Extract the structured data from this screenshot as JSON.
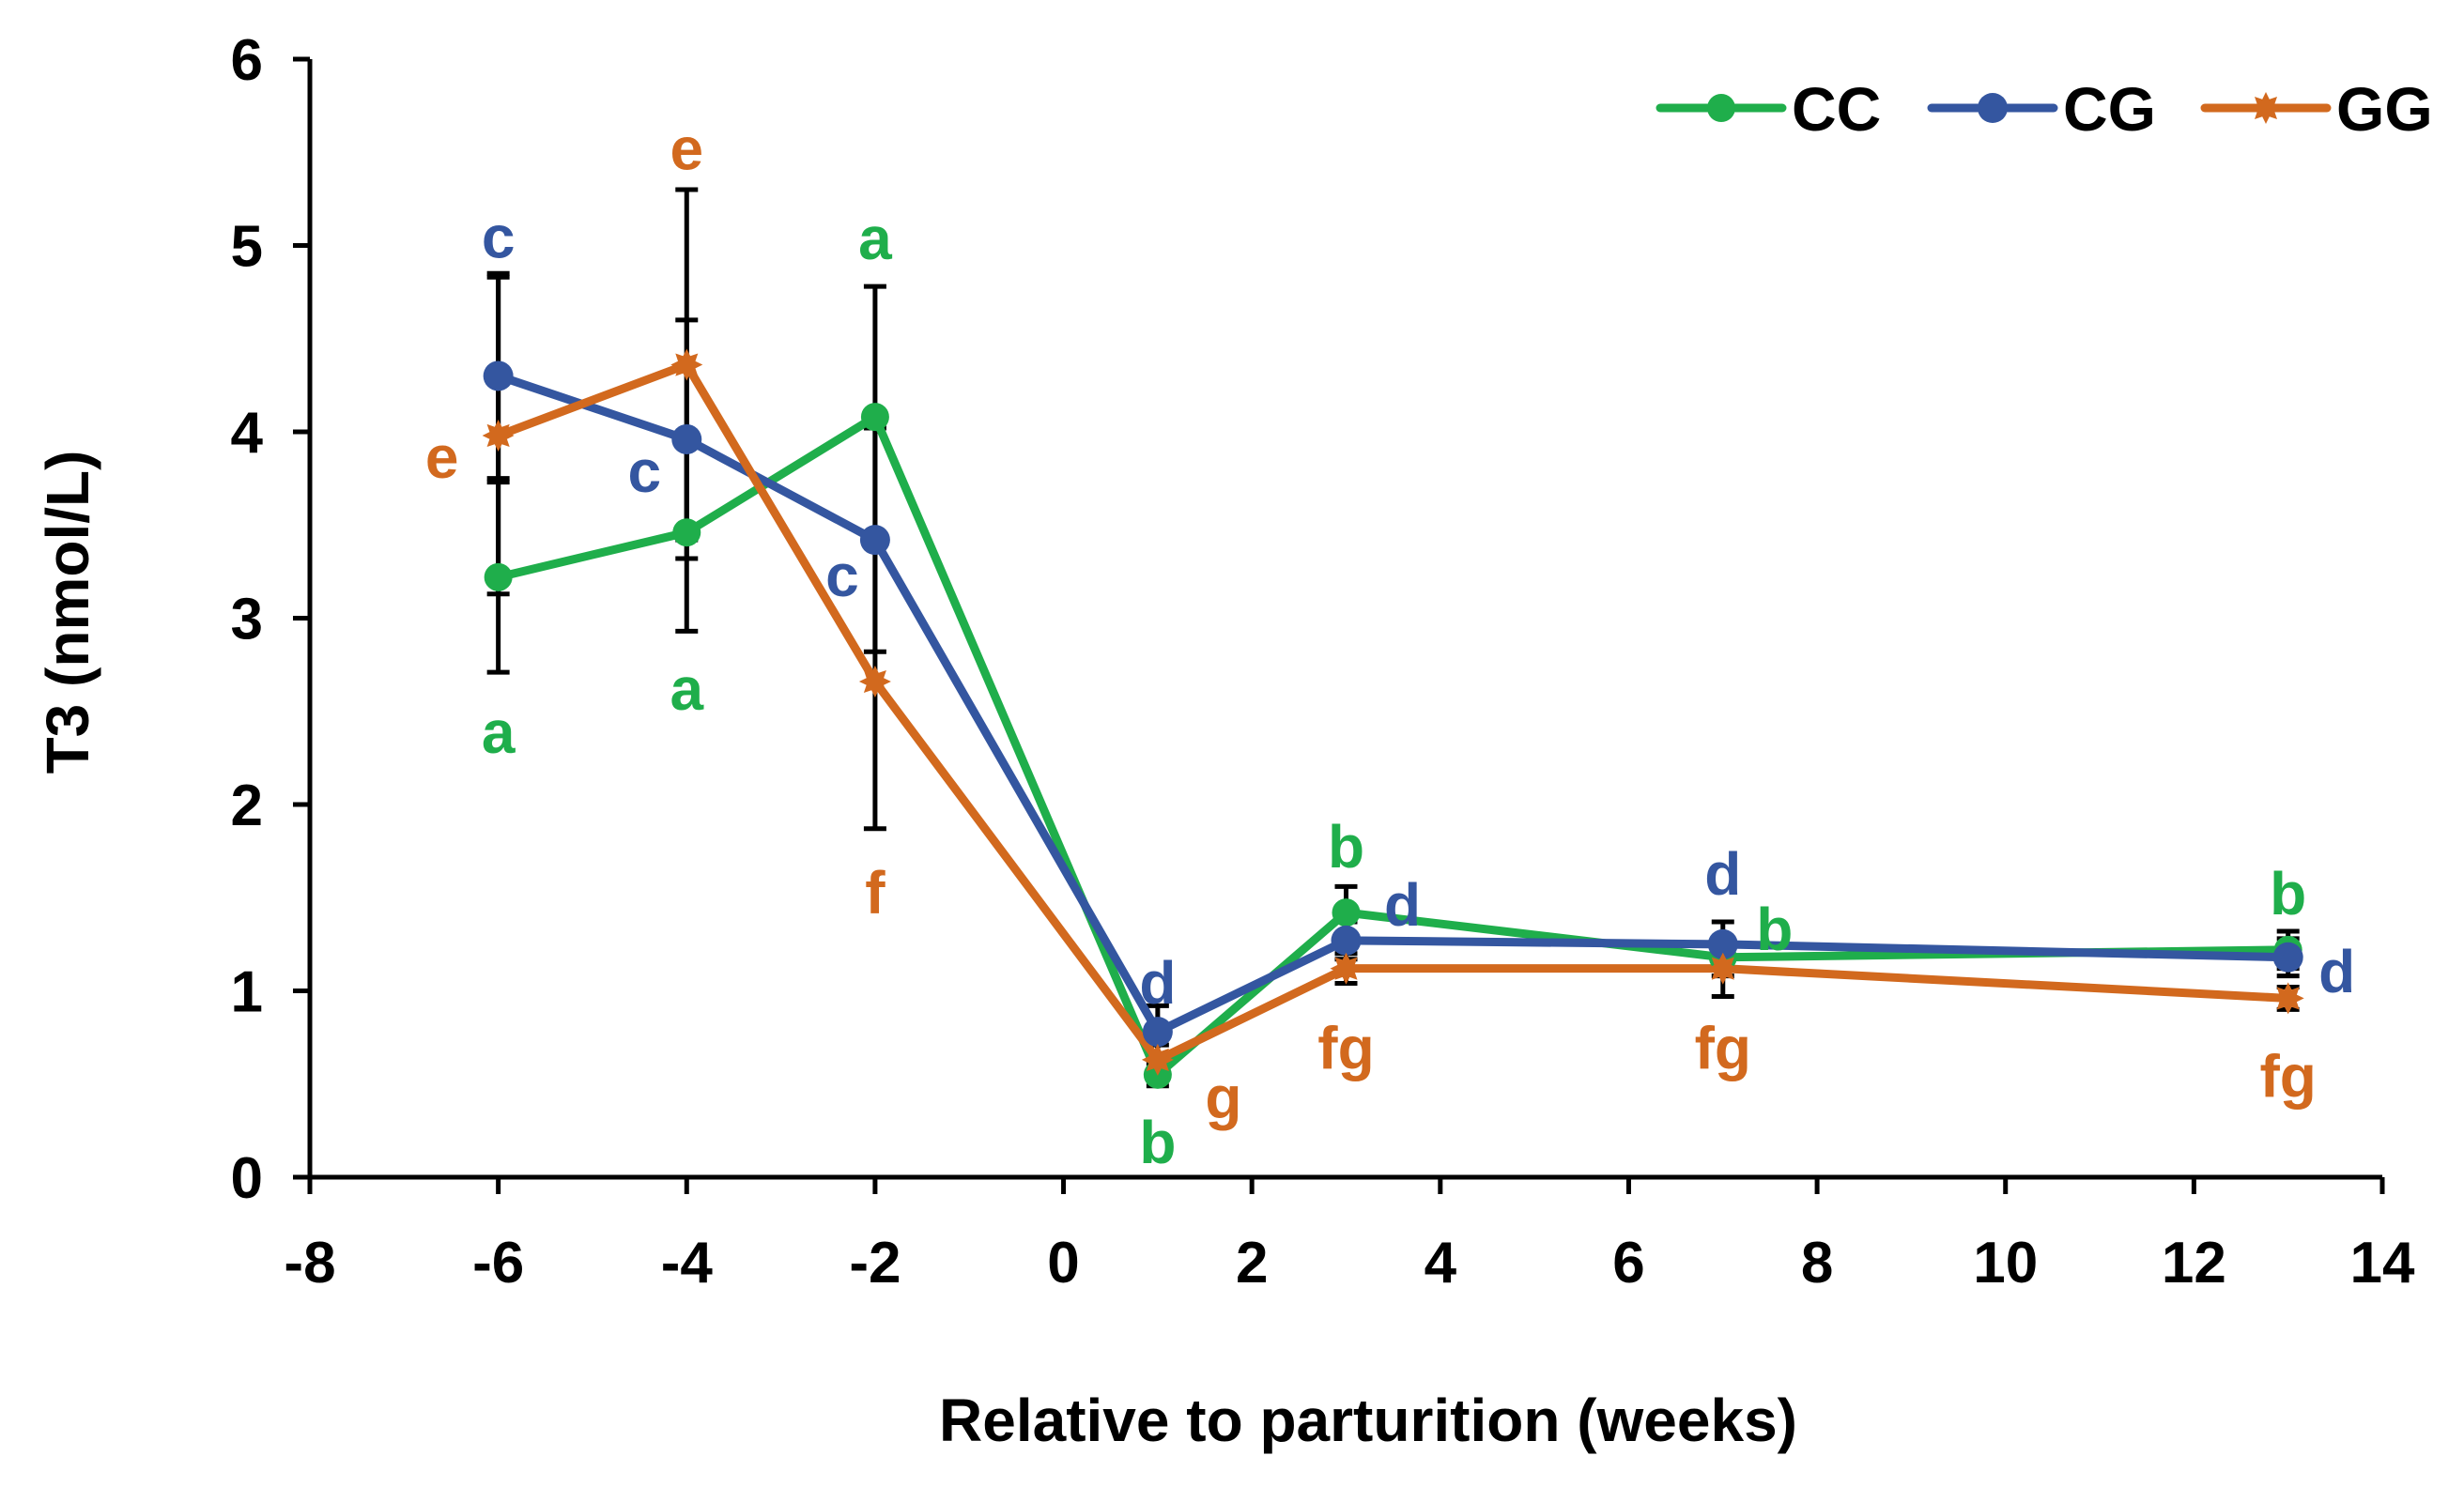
{
  "chart_data": {
    "type": "line",
    "xlabel": "Relative to parturition (weeks)",
    "ylabel": "T3 (nmol/L)",
    "xlim": [
      -8,
      14
    ],
    "ylim": [
      0,
      6
    ],
    "xticks": [
      -8,
      -6,
      -4,
      -2,
      0,
      2,
      4,
      6,
      8,
      10,
      12,
      14
    ],
    "yticks": [
      0,
      1,
      2,
      3,
      4,
      5,
      6
    ],
    "x": [
      -6,
      -4,
      -2,
      1,
      3,
      7,
      13
    ],
    "legend_position": "top-right",
    "series": [
      {
        "name": "CC",
        "color": "#1fae4b",
        "marker": "circle",
        "values": [
          3.22,
          3.46,
          4.08,
          0.55,
          1.42,
          1.18,
          1.22
        ],
        "errors": [
          0.51,
          0.53,
          0.7,
          0.06,
          0.14,
          0.1,
          0.1
        ],
        "letters": [
          "a",
          "a",
          "a",
          "b",
          "b",
          "b",
          "b"
        ]
      },
      {
        "name": "CG",
        "color": "#3456a0",
        "marker": "diamond",
        "values": [
          4.3,
          3.96,
          3.42,
          0.78,
          1.27,
          1.25,
          1.18
        ],
        "errors": [
          0.55,
          0.64,
          0.6,
          0.14,
          0.1,
          0.12,
          0.1
        ],
        "letters": [
          "c",
          "c",
          "c",
          "d",
          "d",
          "d",
          "d"
        ]
      },
      {
        "name": "GG",
        "color": "#d2691e",
        "marker": "star",
        "values": [
          3.98,
          4.36,
          2.66,
          0.63,
          1.12,
          1.12,
          0.96
        ],
        "errors": [
          0.85,
          0.94,
          0.79,
          0.08,
          0.08,
          0.15,
          0.06
        ],
        "letters": [
          "e",
          "e",
          "f",
          "g",
          "fg",
          "fg",
          "fg"
        ]
      }
    ]
  }
}
